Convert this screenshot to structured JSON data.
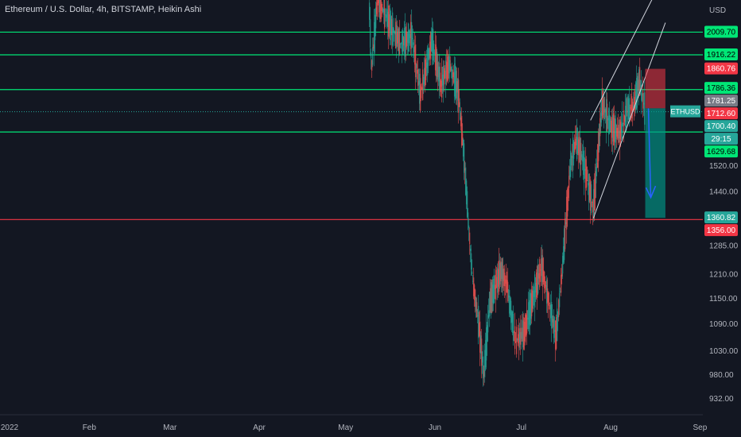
{
  "header": {
    "symbol_title": "Ethereum / U.S. Dollar, 4h, BITSTAMP, Heikin Ashi"
  },
  "price_axis": {
    "currency_label": "USD",
    "ticks": [
      "1520.00",
      "1440.00",
      "1285.00",
      "1210.00",
      "1150.00",
      "1090.00",
      "1030.00",
      "980.00",
      "932.00"
    ]
  },
  "time_axis": {
    "ticks": [
      "2022",
      "Feb",
      "Mar",
      "Apr",
      "May",
      "Jun",
      "Jul",
      "Aug",
      "Sep"
    ]
  },
  "badges": [
    {
      "label": "2009.70",
      "color": "#00e676",
      "text_color": "#000000"
    },
    {
      "label": "1916.22",
      "color": "#00e676",
      "text_color": "#000000"
    },
    {
      "label": "1860.76",
      "color": "#f23645",
      "text_color": "#ffffff"
    },
    {
      "label": "1786.36",
      "color": "#00e676",
      "text_color": "#000000"
    },
    {
      "label": "1781.25",
      "color": "#787b86",
      "text_color": "#ffffff"
    },
    {
      "label": "1712.60",
      "color": "#f23645",
      "text_color": "#ffffff"
    },
    {
      "label": "1700.40",
      "color": "#26a69a",
      "text_color": "#ffffff"
    },
    {
      "label": "29:15",
      "color": "#26a69a",
      "text_color": "#ffffff"
    },
    {
      "label": "1629.68",
      "color": "#00e676",
      "text_color": "#000000"
    },
    {
      "label": "1360.82",
      "color": "#26a69a",
      "text_color": "#ffffff"
    },
    {
      "label": "1356.00",
      "color": "#f23645",
      "text_color": "#ffffff"
    }
  ],
  "symbol_tag": {
    "label": "ETHUSD",
    "color": "#26a69a"
  },
  "colors": {
    "up": "#26a69a",
    "down": "#ef5350",
    "green_line": "#00e676",
    "red_line": "#f23645",
    "background": "#131722",
    "text": "#b2b5be"
  },
  "chart_data": {
    "type": "candlestick",
    "symbol": "ETHUSD",
    "timeframe": "4h",
    "exchange": "BITSTAMP",
    "style": "Heikin Ashi",
    "x_range": [
      "2022-01-01",
      "2022-09-02"
    ],
    "y_scale": "log",
    "y_range": [
      900,
      2150
    ],
    "current_price": 1700.4,
    "horizontal_levels": [
      {
        "price": 2009.7,
        "color": "green"
      },
      {
        "price": 1916.22,
        "color": "green"
      },
      {
        "price": 1781.25,
        "color": "green"
      },
      {
        "price": 1629.68,
        "color": "green"
      },
      {
        "price": 1356.0,
        "color": "red"
      }
    ],
    "short_position": {
      "entry": 1712.6,
      "stop": 1860.76,
      "target": 1360.82,
      "start": "2022-08-13",
      "end": "2022-08-20"
    },
    "trend_channel": [
      {
        "from": [
          "2022-07-26",
          1360
        ],
        "to": [
          "2022-08-20",
          2050
        ]
      },
      {
        "from": [
          "2022-07-25",
          1670
        ],
        "to": [
          "2022-08-17",
          2195
        ]
      }
    ],
    "price_path": [
      [
        "2022-05-09",
        2200
      ],
      [
        "2022-05-10",
        1860
      ],
      [
        "2022-05-12",
        2150
      ],
      [
        "2022-05-15",
        2080
      ],
      [
        "2022-05-20",
        1960
      ],
      [
        "2022-05-24",
        2000
      ],
      [
        "2022-05-27",
        1760
      ],
      [
        "2022-05-31",
        1980
      ],
      [
        "2022-06-03",
        1800
      ],
      [
        "2022-06-06",
        1880
      ],
      [
        "2022-06-09",
        1780
      ],
      [
        "2022-06-11",
        1560
      ],
      [
        "2022-06-14",
        1200
      ],
      [
        "2022-06-16",
        1100
      ],
      [
        "2022-06-18",
        980
      ],
      [
        "2022-06-20",
        1140
      ],
      [
        "2022-06-24",
        1220
      ],
      [
        "2022-06-26",
        1180
      ],
      [
        "2022-06-29",
        1050
      ],
      [
        "2022-07-02",
        1070
      ],
      [
        "2022-07-05",
        1150
      ],
      [
        "2022-07-08",
        1230
      ],
      [
        "2022-07-10",
        1160
      ],
      [
        "2022-07-13",
        1060
      ],
      [
        "2022-07-15",
        1200
      ],
      [
        "2022-07-18",
        1520
      ],
      [
        "2022-07-20",
        1600
      ],
      [
        "2022-07-22",
        1550
      ],
      [
        "2022-07-26",
        1390
      ],
      [
        "2022-07-29",
        1730
      ],
      [
        "2022-08-01",
        1650
      ],
      [
        "2022-08-04",
        1620
      ],
      [
        "2022-08-07",
        1710
      ],
      [
        "2022-08-09",
        1720
      ],
      [
        "2022-08-11",
        1820
      ],
      [
        "2022-08-13",
        1700
      ]
    ]
  }
}
